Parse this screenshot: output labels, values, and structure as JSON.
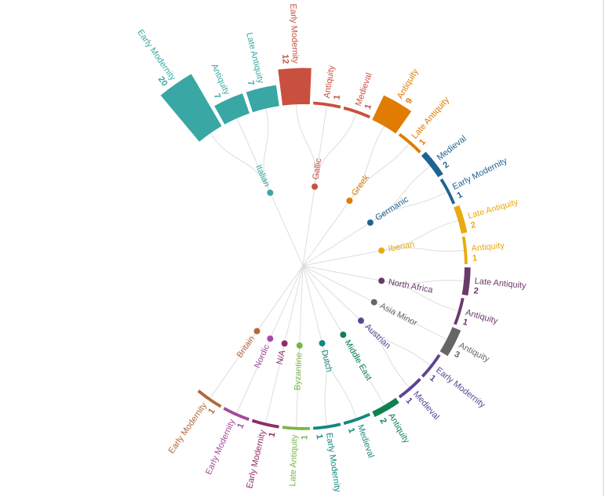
{
  "chart_data": {
    "type": "radial-dendrogram",
    "link_color": "#dddddd",
    "groups": [
      {
        "name": "Italian",
        "color": "#39a7a3",
        "leaves": [
          {
            "name": "Early Modernity",
            "value": 20
          },
          {
            "name": "Antiquity",
            "value": 7
          },
          {
            "name": "Late Antiquity",
            "value": 7
          }
        ]
      },
      {
        "name": "Gallic",
        "color": "#c9503e",
        "leaves": [
          {
            "name": "Early Modernity",
            "value": 12
          },
          {
            "name": "Antiquity",
            "value": 1
          },
          {
            "name": "Medieval",
            "value": 1
          }
        ]
      },
      {
        "name": "Greek",
        "color": "#e07c02",
        "leaves": [
          {
            "name": "Antiquity",
            "value": 9
          },
          {
            "name": "Late Antiquity",
            "value": 1
          }
        ]
      },
      {
        "name": "Germanic",
        "color": "#1f6391",
        "leaves": [
          {
            "name": "Medieval",
            "value": 2
          },
          {
            "name": "Early Modernity",
            "value": 1
          }
        ]
      },
      {
        "name": "Iberian",
        "color": "#e8aa10",
        "leaves": [
          {
            "name": "Late Antiquity",
            "value": 2
          },
          {
            "name": "Antiquity",
            "value": 1
          }
        ]
      },
      {
        "name": "North Africa",
        "color": "#6a3a6c",
        "leaves": [
          {
            "name": "Late Antiquity",
            "value": 2
          },
          {
            "name": "Antiquity",
            "value": 1
          }
        ]
      },
      {
        "name": "Asia Minor",
        "color": "#666666",
        "leaves": [
          {
            "name": "Antiquity",
            "value": 3
          }
        ]
      },
      {
        "name": "Austrian",
        "color": "#5b4496",
        "leaves": [
          {
            "name": "Early Modernity",
            "value": 1
          },
          {
            "name": "Medieval",
            "value": 1
          }
        ]
      },
      {
        "name": "Middle East",
        "color": "#0e8150",
        "leaves": [
          {
            "name": "Antiquity",
            "value": 2
          }
        ]
      },
      {
        "name": "Dutch",
        "color": "#13877f",
        "leaves": [
          {
            "name": "Medieval",
            "value": 1
          },
          {
            "name": "Early Modernity",
            "value": 1
          }
        ]
      },
      {
        "name": "Byzantine",
        "color": "#7ab547",
        "leaves": [
          {
            "name": "Late Antiquity",
            "value": 1
          }
        ]
      },
      {
        "name": "N/A",
        "color": "#8f2d66",
        "leaves": [
          {
            "name": "Early Modernity",
            "value": 1
          }
        ]
      },
      {
        "name": "Nordic",
        "color": "#a14b9d",
        "leaves": [
          {
            "name": "Early Modernity",
            "value": 1
          }
        ]
      },
      {
        "name": "Britain",
        "color": "#b3683b",
        "leaves": [
          {
            "name": "Early Modernity",
            "value": 1
          }
        ]
      }
    ]
  }
}
